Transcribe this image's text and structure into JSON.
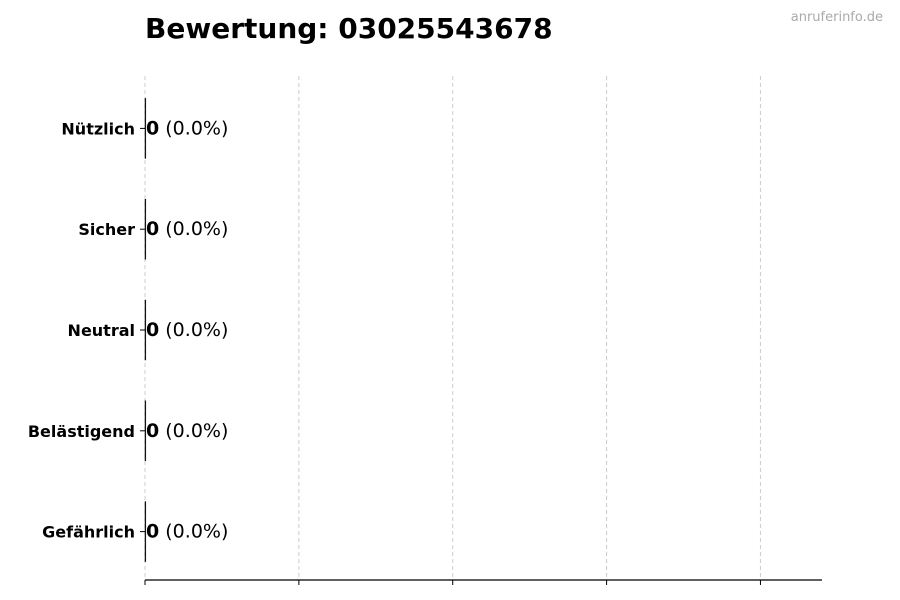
{
  "watermark": "anruferinfo.de",
  "chart_data": {
    "type": "bar",
    "orientation": "horizontal",
    "title": "Bewertung: 03025543678",
    "categories": [
      "Nützlich",
      "Sicher",
      "Neutral",
      "Belästigend",
      "Gefährlich"
    ],
    "values": [
      0,
      0,
      0,
      0,
      0
    ],
    "data_labels": [
      {
        "count": "0",
        "percent": "(0.0%)"
      },
      {
        "count": "0",
        "percent": "(0.0%)"
      },
      {
        "count": "0",
        "percent": "(0.0%)"
      },
      {
        "count": "0",
        "percent": "(0.0%)"
      },
      {
        "count": "0",
        "percent": "(0.0%)"
      }
    ],
    "xlabel": "",
    "ylabel": "",
    "xlim": [
      0,
      4.4
    ],
    "xticks": [
      0,
      1,
      2,
      3,
      4
    ],
    "xtick_labels_shown": false,
    "grid": "x, dashed",
    "colors": {
      "bar_edge": "#000000",
      "grid": "#cccccc",
      "watermark": "#aaaaaa"
    }
  }
}
